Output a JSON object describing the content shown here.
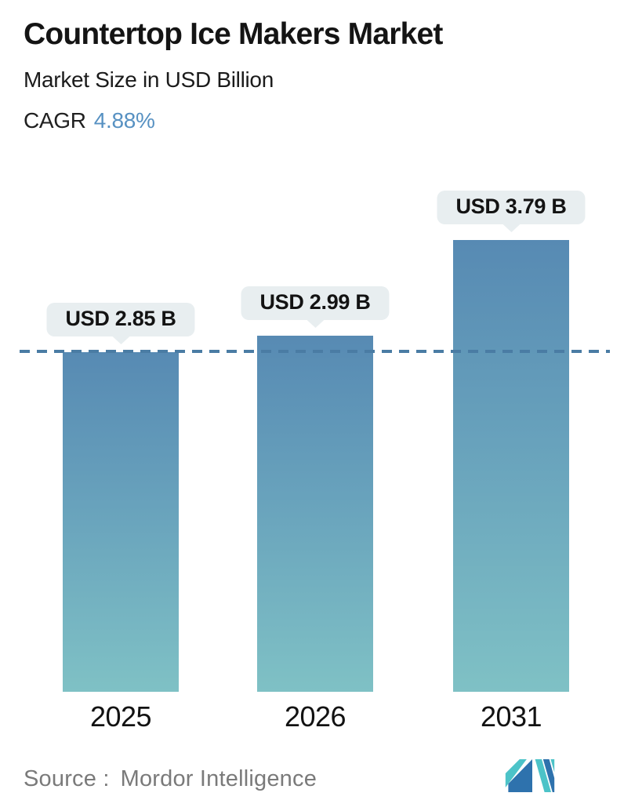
{
  "header": {
    "title": "Countertop Ice Makers Market",
    "subtitle": "Market Size in USD Billion",
    "cagr_label": "CAGR",
    "cagr_value": "4.88%"
  },
  "chart_data": {
    "type": "bar",
    "title": "Countertop Ice Makers Market",
    "subtitle": "Market Size in USD Billion",
    "unit": "USD Billion",
    "cagr_percent": 4.88,
    "categories": [
      "2025",
      "2026",
      "2031"
    ],
    "values": [
      2.85,
      2.99,
      3.79
    ],
    "value_labels": [
      "USD 2.85 B",
      "USD 2.99 B",
      "USD 3.79 B"
    ],
    "ylim": [
      0,
      4.49
    ],
    "grid": false,
    "legend": "none",
    "reference_line": {
      "style": "dashed",
      "value": 2.85,
      "color": "#4a7ca4"
    }
  },
  "footer": {
    "source_label": "Source :",
    "source_value": "Mordor Intelligence",
    "logo_name": "mordor-intelligence-logo"
  },
  "colors": {
    "bar_gradient_top": "#578ab3",
    "bar_gradient_bottom": "#7fc1c5",
    "reference_line": "#4a7ca4",
    "bubble_background": "#e8eef0",
    "cagr_accent": "#5791c2",
    "source_text": "#7a7a7a",
    "logo_blue": "#2e72ad",
    "logo_teal": "#4cc3c8"
  }
}
